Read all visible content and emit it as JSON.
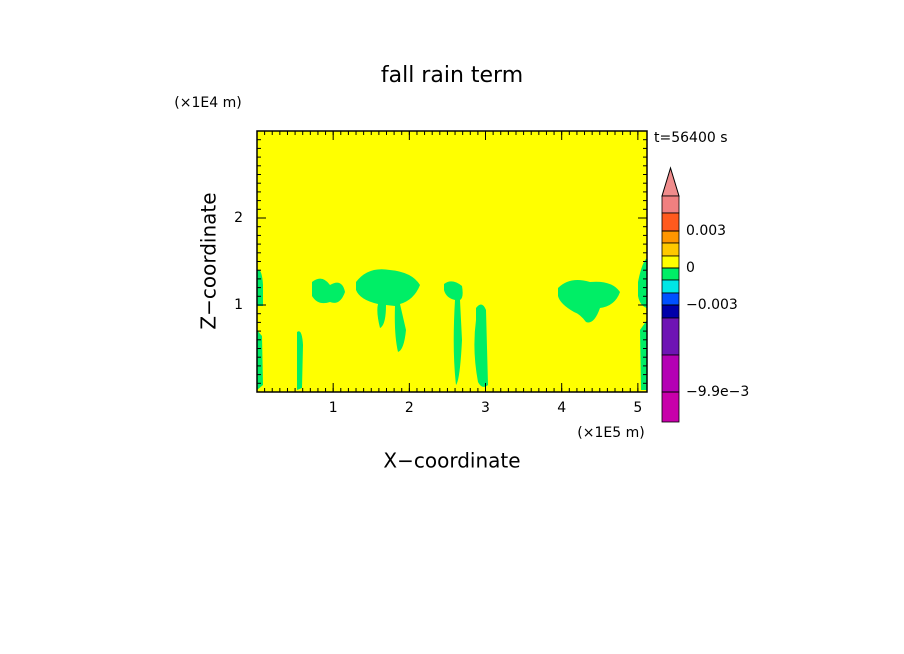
{
  "chart_data": {
    "type": "contour",
    "title": "fall rain term",
    "x_label": "X−coordinate",
    "y_label": "Z−coordinate",
    "x_unit": "(×1E5 m)",
    "y_unit": "(×1E4 m)",
    "time_label": "t=56400 s",
    "xlim": [
      0,
      5.12
    ],
    "xticks": [
      1,
      2,
      3,
      4,
      5
    ],
    "ylim": [
      0,
      3
    ],
    "yticks": [
      1,
      2
    ],
    "field_color": "#ffff00",
    "region_color": "#00ee66",
    "colorbar": {
      "colors": [
        "#f08c8c",
        "#f08080",
        "#ff5a1e",
        "#ff9600",
        "#ffc800",
        "#ffff00",
        "#00ee66",
        "#00e6e6",
        "#0050ff",
        "#0000aa",
        "#6e14b4",
        "#b400b4",
        "#c800aa",
        "#dc00b4"
      ],
      "ticks": [
        {
          "value": 0.003,
          "label": "0.003"
        },
        0,
        {
          "value": -0.003,
          "label": "−0.003"
        },
        {
          "value": -0.0099,
          "label": "−9.9e−3"
        }
      ]
    }
  }
}
